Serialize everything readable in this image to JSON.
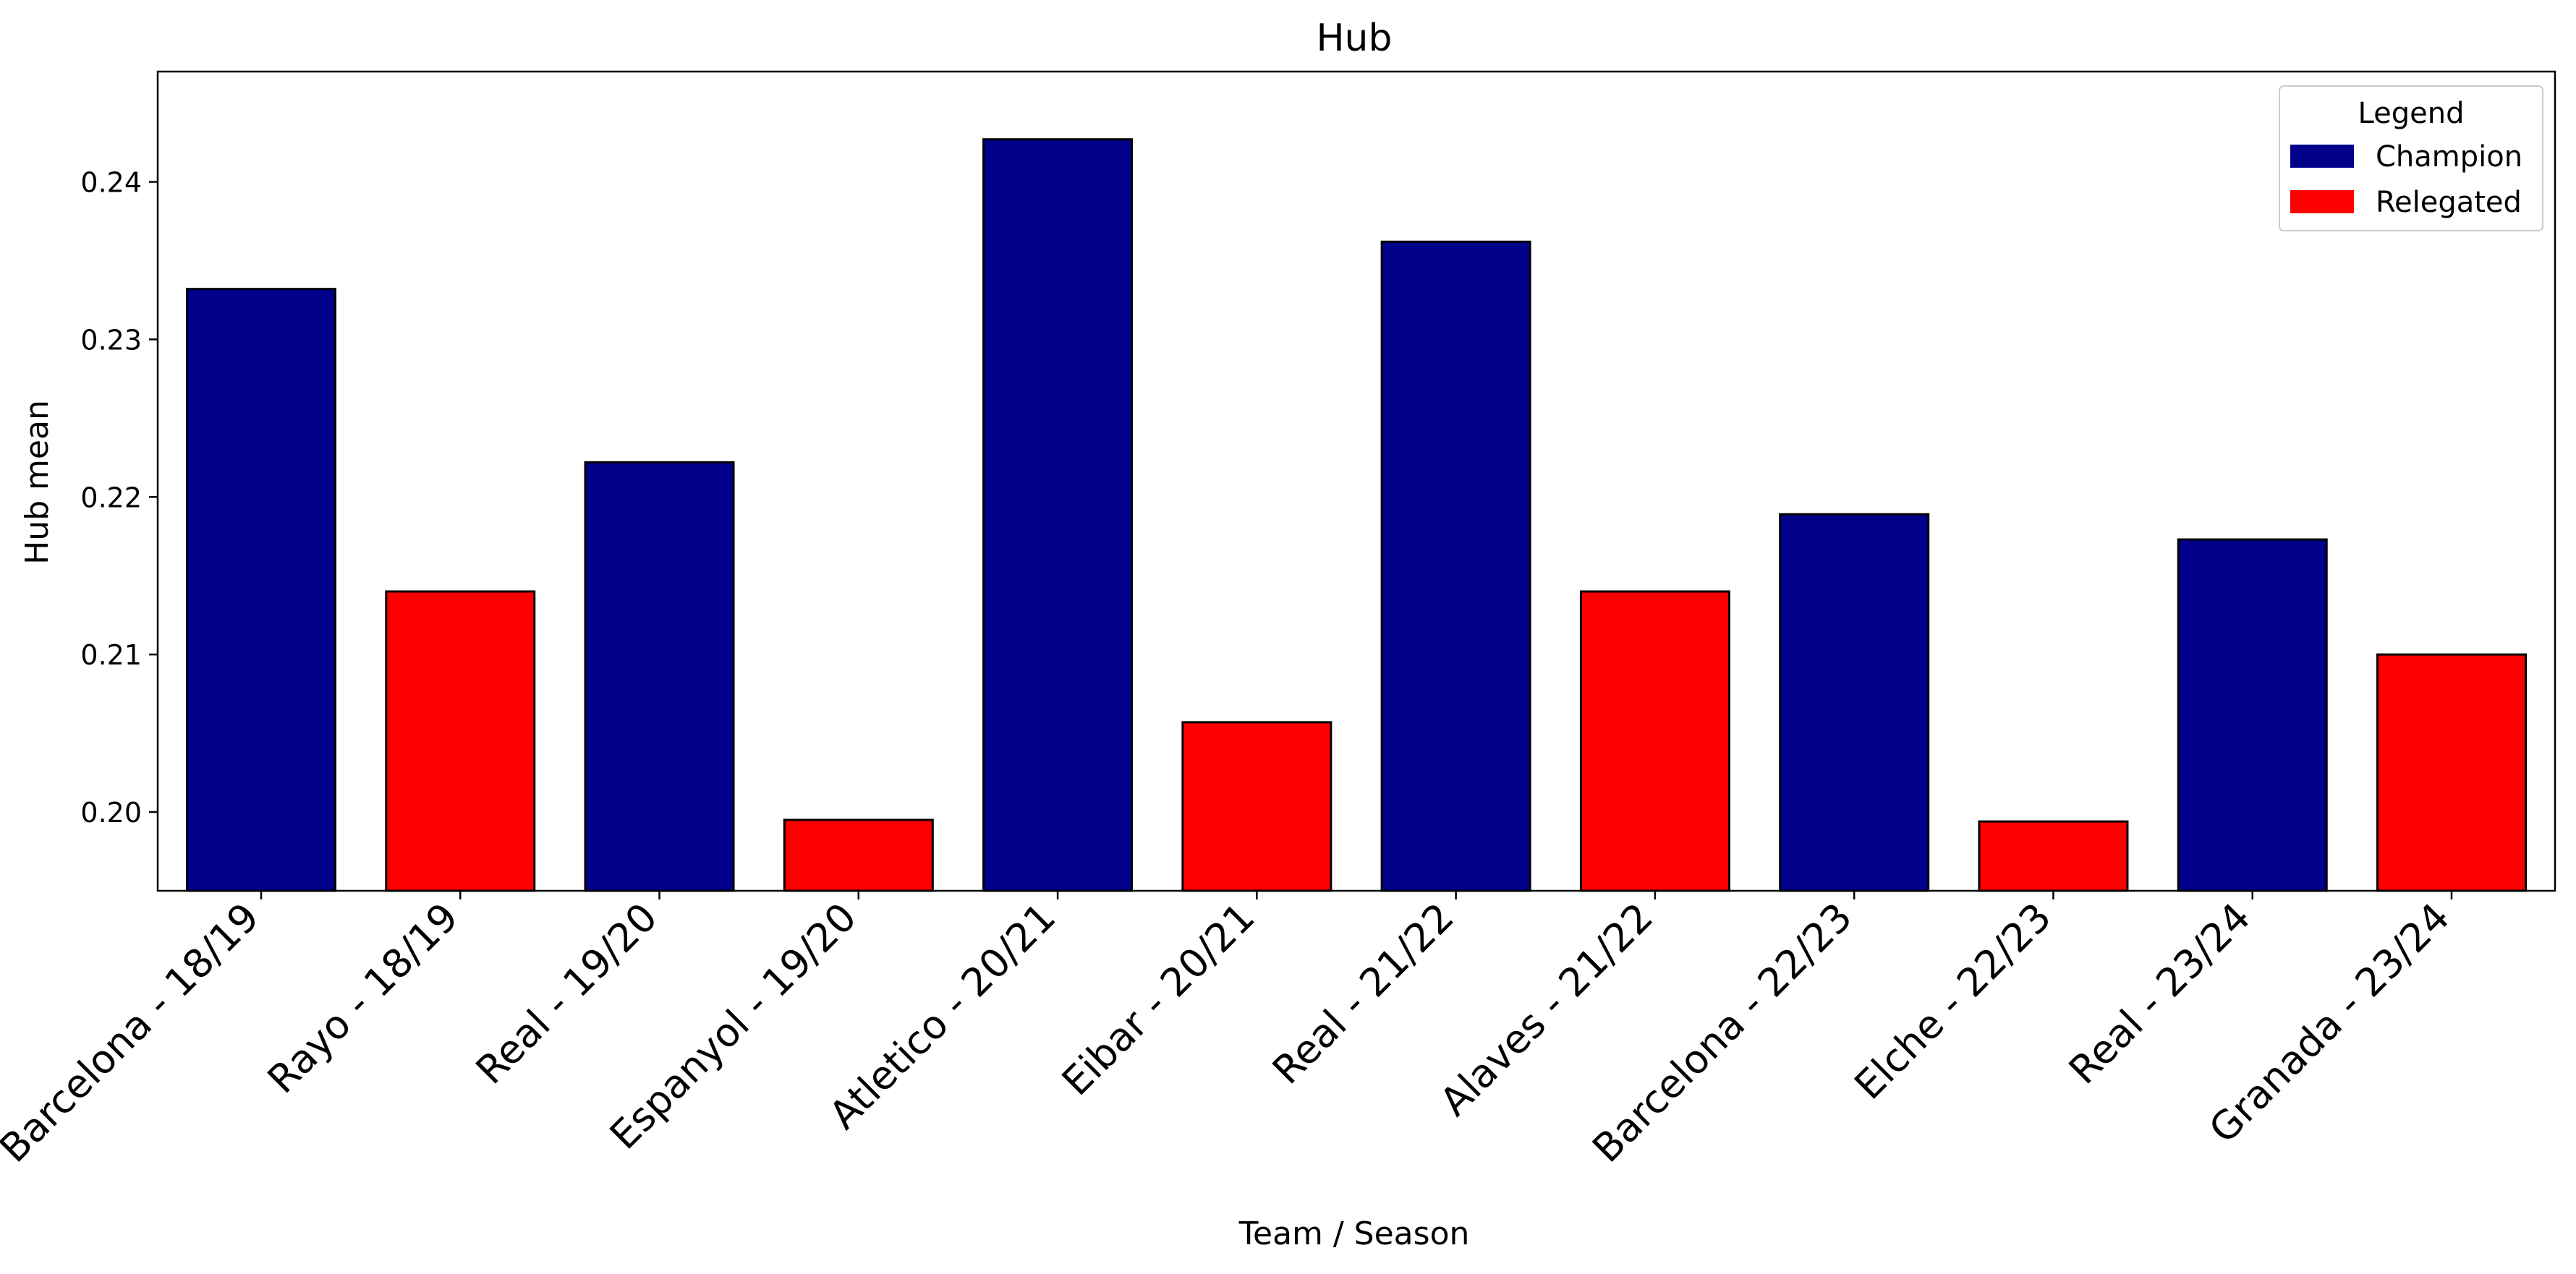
{
  "chart_data": {
    "type": "bar",
    "title": "Hub",
    "xlabel": "Team / Season",
    "ylabel": "Hub mean",
    "ylim": [
      0.195,
      0.247
    ],
    "yticks": [
      0.2,
      0.21,
      0.22,
      0.23,
      0.24
    ],
    "ytick_labels": [
      "0.20",
      "0.21",
      "0.22",
      "0.23",
      "0.24"
    ],
    "grid": false,
    "legend": {
      "title": "Legend",
      "position": "top-right",
      "entries": [
        {
          "label": "Champion",
          "color": "#00008b"
        },
        {
          "label": "Relegated",
          "color": "#ff0000"
        }
      ]
    },
    "categories": [
      "Barcelona - 18/19",
      "Rayo - 18/19",
      "Real - 19/20",
      "Espanyol - 19/20",
      "Atletico - 20/21",
      "Eibar - 20/21",
      "Real - 21/22",
      "Alaves - 21/22",
      "Barcelona - 22/23",
      "Elche - 22/23",
      "Real - 23/24",
      "Granada - 23/24"
    ],
    "values": [
      0.2332,
      0.214,
      0.2222,
      0.1995,
      0.2427,
      0.2057,
      0.2362,
      0.214,
      0.2189,
      0.1994,
      0.2173,
      0.21
    ],
    "groups": [
      "Champion",
      "Relegated",
      "Champion",
      "Relegated",
      "Champion",
      "Relegated",
      "Champion",
      "Relegated",
      "Champion",
      "Relegated",
      "Champion",
      "Relegated"
    ]
  }
}
